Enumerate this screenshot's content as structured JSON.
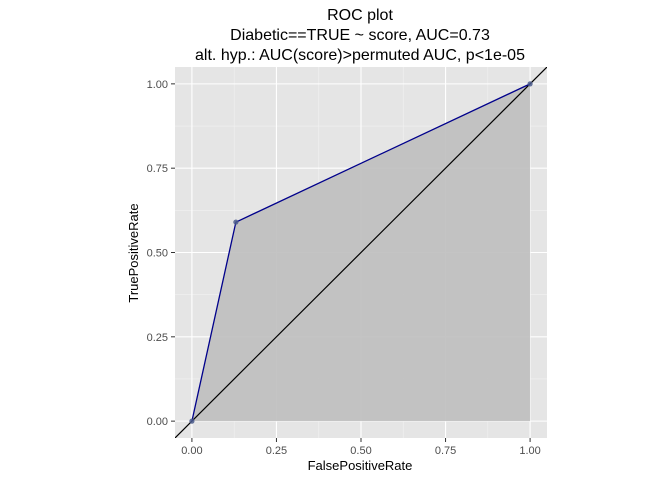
{
  "chart_data": {
    "type": "line",
    "title": "ROC plot",
    "subtitle_lines": [
      "Diabetic==TRUE ~ score, AUC=0.73",
      "alt. hyp.: AUC(score)>permuted AUC, p<1e-05"
    ],
    "xlabel": "FalsePositiveRate",
    "ylabel": "TruePositiveRate",
    "xlim": [
      -0.05,
      1.05
    ],
    "ylim": [
      -0.05,
      1.05
    ],
    "x_ticks": [
      0.0,
      0.25,
      0.5,
      0.75,
      1.0
    ],
    "x_tick_labels": [
      "0.00",
      "0.25",
      "0.50",
      "0.75",
      "1.00"
    ],
    "y_ticks": [
      0.0,
      0.25,
      0.5,
      0.75,
      1.0
    ],
    "y_tick_labels": [
      "0.00",
      "0.25",
      "0.50",
      "0.75",
      "1.00"
    ],
    "grid": true,
    "series": [
      {
        "points": [
          {
            "x": 0.0,
            "y": 0.0
          },
          {
            "x": 0.13,
            "y": 0.59
          },
          {
            "x": 1.0,
            "y": 1.0
          }
        ],
        "color": "#00008b",
        "fill": "#bebebe"
      }
    ],
    "reference_line": {
      "points": [
        {
          "x": -0.05,
          "y": -0.05
        },
        {
          "x": 1.05,
          "y": 1.05
        }
      ],
      "color": "#000000"
    },
    "colors": {
      "panel_background": "#e5e5e5",
      "grid_major": "#ffffff",
      "grid_minor": "#f2f2f2",
      "point_fill": "#4a5a8c"
    }
  }
}
